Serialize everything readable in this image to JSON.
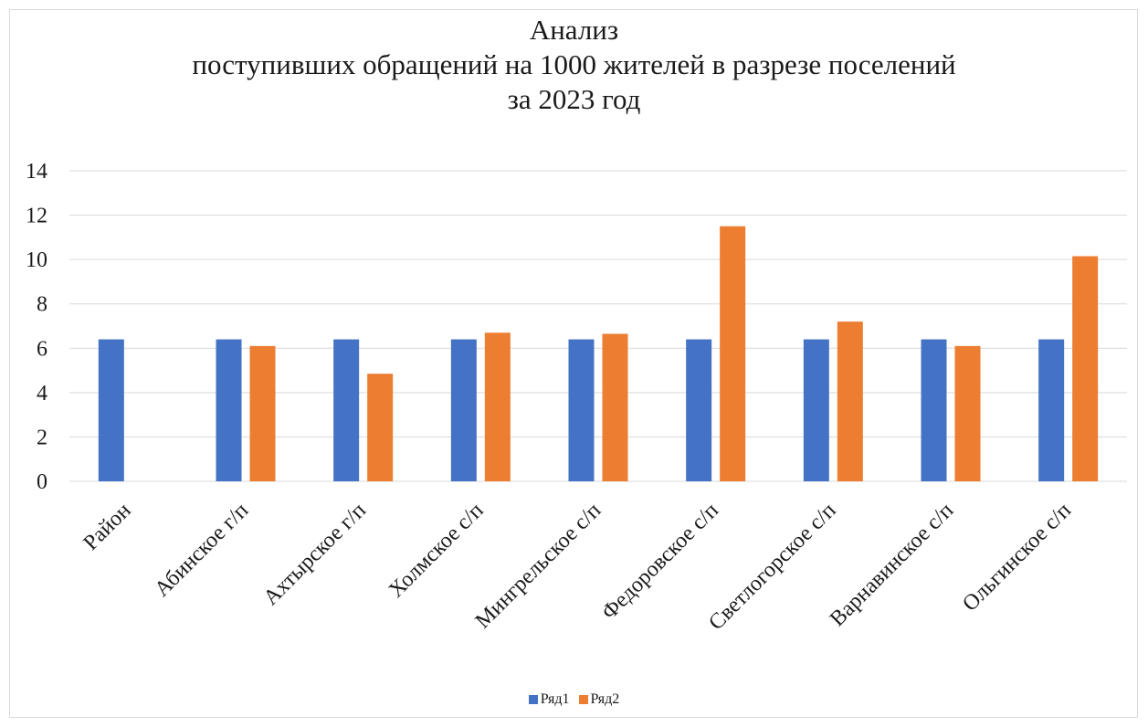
{
  "chart_data": {
    "type": "bar",
    "title": [
      "Анализ",
      "поступивших обращений на 1000 жителей в разрезе поселений",
      "за 2023 год"
    ],
    "categories": [
      "Район",
      "Абинское г/п",
      "Ахтырское г/п",
      "Холмское с/п",
      "Мингрельское с/п",
      "Федоровское с/п",
      "Светлогорское с/п",
      "Варнавинское с/п",
      "Ольгинское с/п"
    ],
    "series": [
      {
        "name": "Ряд1",
        "color": "#4472c4",
        "values": [
          6.4,
          6.4,
          6.4,
          6.4,
          6.4,
          6.4,
          6.4,
          6.4,
          6.4
        ]
      },
      {
        "name": "Ряд2",
        "color": "#ed7d31",
        "values": [
          null,
          6.1,
          4.85,
          6.7,
          6.65,
          11.5,
          7.2,
          6.1,
          10.15
        ]
      }
    ],
    "ylim": [
      0,
      14
    ],
    "yticks": [
      0,
      2,
      4,
      6,
      8,
      10,
      12,
      14
    ],
    "grid": true,
    "legend_position": "bottom",
    "gridline_color": "#d9d9d9"
  }
}
